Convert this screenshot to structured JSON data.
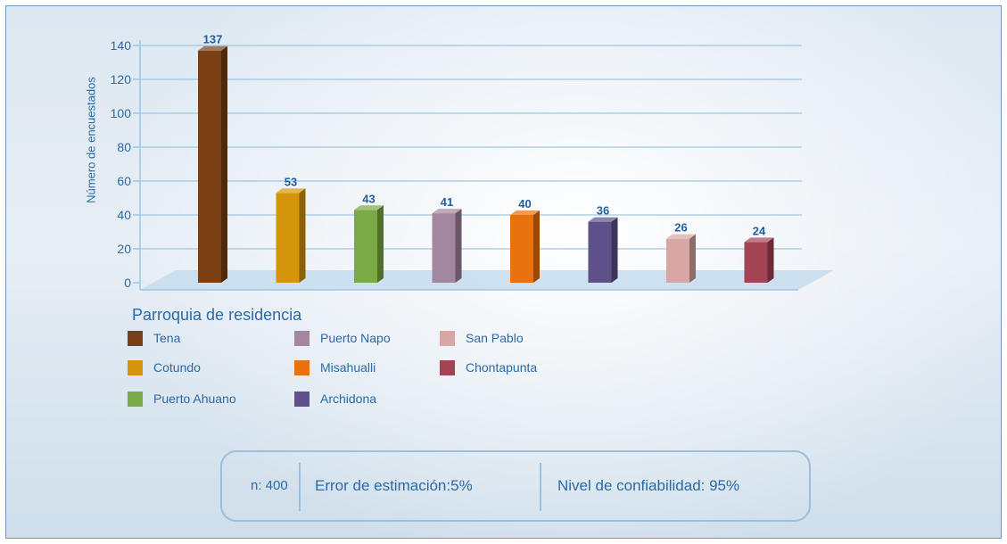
{
  "chart_data": {
    "type": "bar",
    "title": "",
    "xlabel": "Parroquia de residencia",
    "ylabel": "Número de encuestados",
    "ylim": [
      0,
      140
    ],
    "yticks": [
      "0",
      "20",
      "40",
      "60",
      "80",
      "100",
      "120",
      "140"
    ],
    "grid": true,
    "legend_position": "bottom-left",
    "categories": [
      "Tena",
      "Cotundo",
      "Puerto Ahuano",
      "Puerto Napo",
      "Misahualli",
      "Archidona",
      "San Pablo",
      "Chontapunta"
    ],
    "values": [
      137,
      53,
      43,
      41,
      40,
      36,
      26,
      24
    ],
    "data_labels": [
      "137",
      "53",
      "43",
      "41",
      "40",
      "36",
      "26",
      "24"
    ],
    "colors": [
      "#7a3f13",
      "#d5950a",
      "#79aa45",
      "#a3869f",
      "#e8720d",
      "#5e5089",
      "#d8a7a5",
      "#a34453"
    ]
  },
  "legend": {
    "title": "Parroquia de residencia",
    "items": [
      {
        "label": "Tena",
        "color": "#7a3f13"
      },
      {
        "label": "Puerto Napo",
        "color": "#a3869f"
      },
      {
        "label": "San Pablo",
        "color": "#d8a7a5"
      },
      {
        "label": "Cotundo",
        "color": "#d5950a"
      },
      {
        "label": "Misahualli",
        "color": "#e8720d"
      },
      {
        "label": "Chontapunta",
        "color": "#a34453"
      },
      {
        "label": "Puerto Ahuano",
        "color": "#79aa45"
      },
      {
        "label": "Archidona",
        "color": "#5e5089"
      }
    ]
  },
  "stats": {
    "n": "n: 400",
    "error": "Error de estimación:5%",
    "confidence": "Nivel de confiabilidad: 95%"
  },
  "theme": {
    "text_color": "#2a6aa8",
    "grid_color": "#9ec6e2"
  }
}
